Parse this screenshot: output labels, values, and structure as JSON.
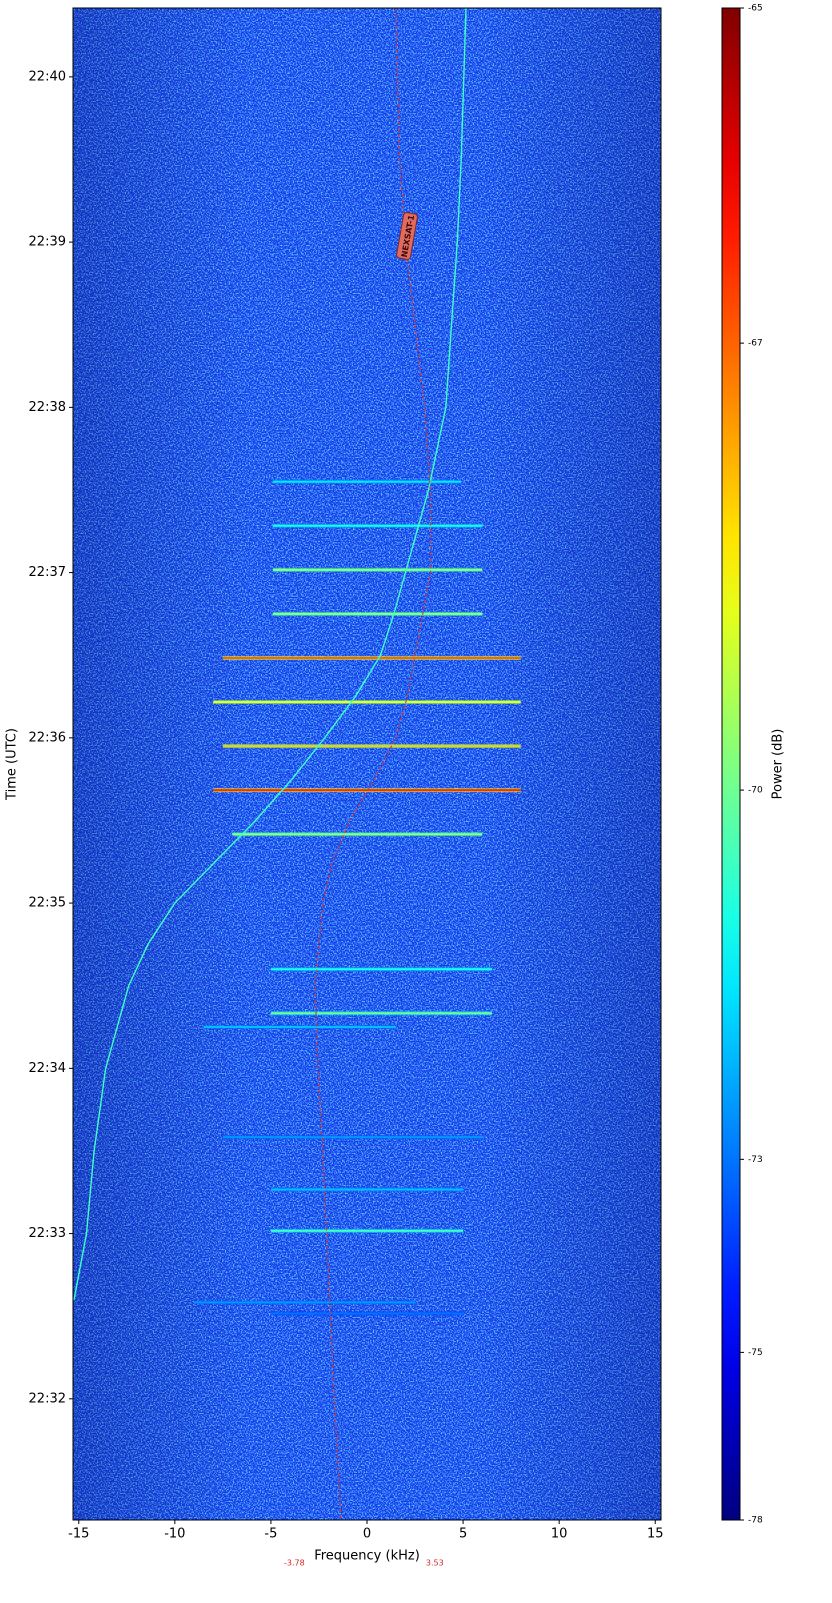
{
  "chart_data": {
    "type": "spectrogram",
    "colormap": "jet",
    "xlabel": "Frequency (kHz)",
    "ylabel": "Time (UTC)",
    "colorbar_label": "Power (dB)",
    "xlim": [
      -15.3,
      15.3
    ],
    "xticks": [
      -15,
      -10,
      -5,
      0,
      5,
      10,
      15
    ],
    "ylim": [
      "22:31:16",
      "22:40:25"
    ],
    "yticks": [
      "22:32",
      "22:33",
      "22:34",
      "22:35",
      "22:36",
      "22:37",
      "22:38",
      "22:39",
      "22:40"
    ],
    "clim": [
      -78,
      -65
    ],
    "colorbar_scale": "power",
    "colorbar_gamma": 1.5,
    "colorbar_ticks": [
      -65,
      -67,
      -70,
      -73,
      -75,
      -78
    ],
    "series": [
      {
        "color": "#3dffc8",
        "style": "solid",
        "y": [
          "22:40:25",
          "22:39:30",
          "22:39:00",
          "22:38:30",
          "22:38:00",
          "22:37:30",
          "22:37:00",
          "22:36:45",
          "22:36:30",
          "22:36:15",
          "22:36:00",
          "22:35:45",
          "22:35:30",
          "22:35:15",
          "22:35:00",
          "22:34:45",
          "22:34:30",
          "22:34:00",
          "22:33:30",
          "22:33:00",
          "22:32:36"
        ],
        "x": [
          5.15,
          4.9,
          4.7,
          4.4,
          4.1,
          3.2,
          2.0,
          1.4,
          0.7,
          -0.6,
          -2.2,
          -3.9,
          -5.8,
          -7.9,
          -10.0,
          -11.4,
          -12.4,
          -13.6,
          -14.2,
          -14.6,
          -15.25
        ]
      },
      {
        "color": "#d9372a",
        "style": "dashed",
        "y": [
          "22:40:25",
          "22:39:30",
          "22:39:00",
          "22:38:30",
          "22:38:00",
          "22:37:30",
          "22:37:00",
          "22:36:30",
          "22:36:15",
          "22:36:00",
          "22:35:45",
          "22:35:30",
          "22:35:15",
          "22:35:00",
          "22:34:30",
          "22:34:00",
          "22:33:30",
          "22:33:00",
          "22:32:30",
          "22:32:00",
          "22:31:16"
        ],
        "x": [
          1.5,
          1.7,
          2.0,
          2.5,
          3.0,
          3.3,
          3.3,
          2.5,
          2.1,
          1.5,
          0.4,
          -0.9,
          -1.8,
          -2.3,
          -2.7,
          -2.55,
          -2.3,
          -2.1,
          -1.9,
          -1.7,
          -1.35
        ]
      }
    ],
    "label": "NEXSAT-1",
    "freq_markers": [
      -3.78,
      3.53
    ],
    "bursts": {
      "time": [
        "22:37:33",
        "22:37:17",
        "22:37:01",
        "22:36:45",
        "22:36:29",
        "22:36:13",
        "22:35:57",
        "22:35:41",
        "22:35:25",
        "22:34:36",
        "22:34:20",
        "22:34:15",
        "22:33:35",
        "22:33:16",
        "22:33:01",
        "22:32:35",
        "22:32:31"
      ],
      "freq_start": [
        -4.9,
        -4.9,
        -4.9,
        -4.9,
        -7.5,
        -8.0,
        -7.5,
        -8.0,
        -7.0,
        -5.0,
        -5.0,
        -8.5,
        -7.5,
        -5.0,
        -5.0,
        -9.0,
        -5.0
      ],
      "freq_end": [
        4.9,
        6.0,
        6.0,
        6.0,
        8.0,
        8.0,
        8.0,
        8.0,
        6.0,
        6.5,
        6.5,
        1.5,
        6.0,
        5.0,
        5.0,
        2.5,
        5.0
      ],
      "power": [
        -71.5,
        -71,
        -69.5,
        -69.5,
        -67,
        -68.5,
        -68,
        -66.5,
        -69.5,
        -71,
        -70,
        -72,
        -72.5,
        -72,
        -70.5,
        -72.5,
        -73
      ]
    }
  }
}
